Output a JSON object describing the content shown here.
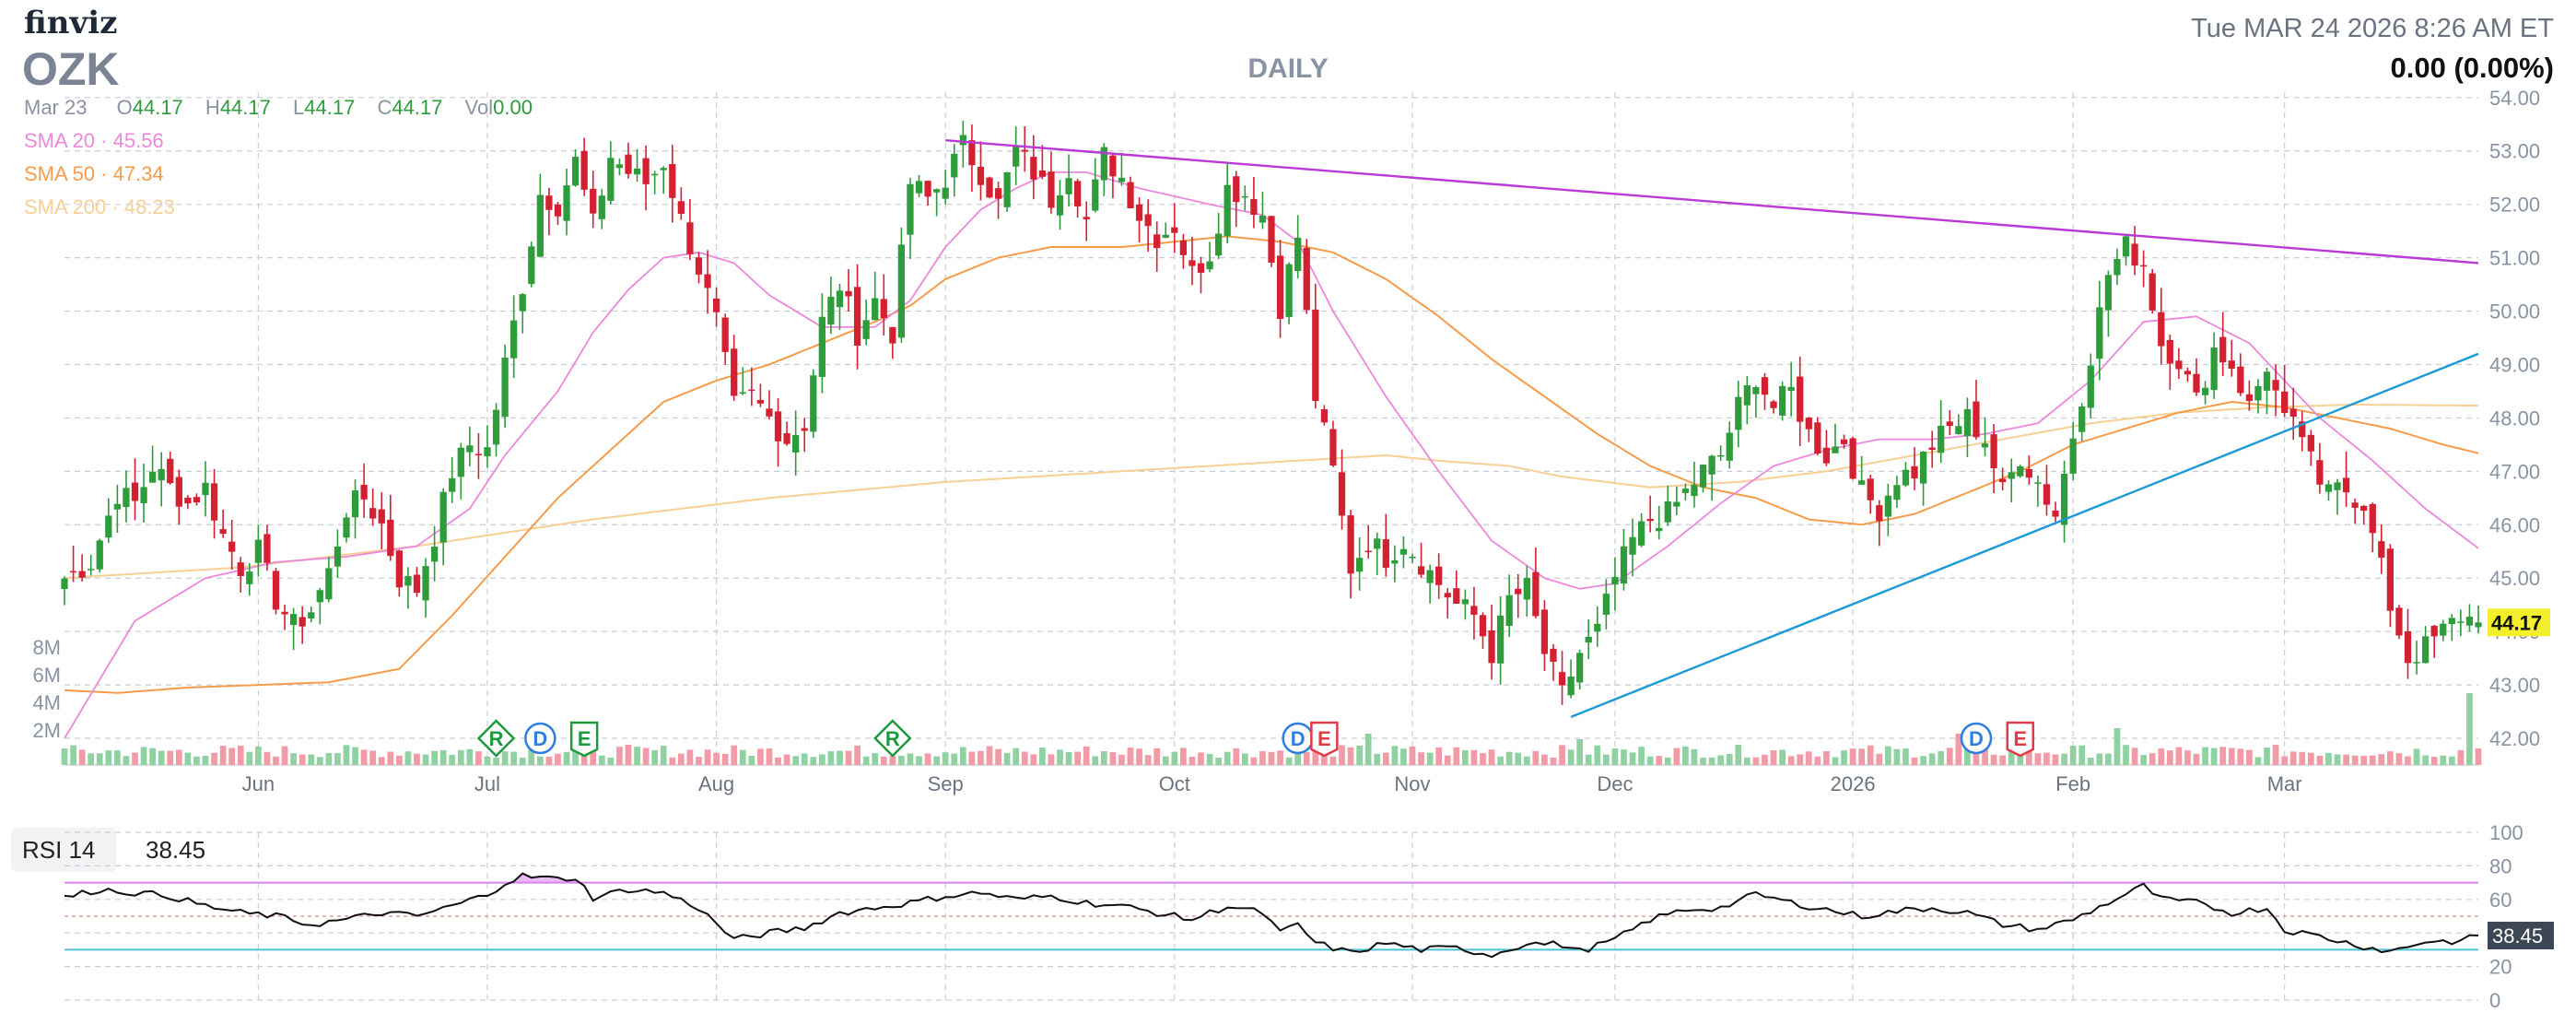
{
  "header": {
    "logo": "finviz",
    "ticker": "OZK",
    "timeframe": "DAILY",
    "datetime": "Tue MAR 24 2026 8:26 AM ET",
    "change": "0.00 (0.00%)",
    "ohlc_date": "Mar 23",
    "ohlc": [
      {
        "k": "O",
        "v": "44.17"
      },
      {
        "k": "H",
        "v": "44.17"
      },
      {
        "k": "L",
        "v": "44.17"
      },
      {
        "k": "C",
        "v": "44.17"
      },
      {
        "k": "Vol",
        "v": "0.00"
      }
    ],
    "sma": [
      {
        "label": "SMA 20",
        "value": "45.56",
        "color": "#ec88dc"
      },
      {
        "label": "SMA 50",
        "value": "47.34",
        "color": "#f59c4b"
      },
      {
        "label": "SMA 200",
        "value": "48.23",
        "color": "#f8cf94"
      }
    ]
  },
  "rsi_panel": {
    "label": "RSI 14",
    "value": "38.45"
  },
  "colors": {
    "up": "#2e9c3b",
    "down": "#d42132",
    "vol_up": "#8fd1a0",
    "vol_down": "#f29aa5",
    "trend_magenta": "#b93ad4",
    "trend_blue": "#1a9bd7",
    "rsi_line": "#111111",
    "rsi_upper": "#d982f0",
    "rsi_lower": "#50c2d6"
  },
  "chart_data": {
    "type": "candlestick",
    "title": "OZK DAILY",
    "y_range": [
      41.5,
      54.1
    ],
    "y_ticks": [
      "54.00",
      "53.00",
      "52.00",
      "51.00",
      "50.00",
      "49.00",
      "48.00",
      "47.00",
      "46.00",
      "45.00",
      "44.00",
      "43.00",
      "42.00"
    ],
    "last_price_label": "44.17",
    "volume_ticks": [
      "8M",
      "6M",
      "4M",
      "2M"
    ],
    "x_ticks": [
      {
        "i": 22,
        "label": "Jun"
      },
      {
        "i": 48,
        "label": "Jul"
      },
      {
        "i": 74,
        "label": "Aug"
      },
      {
        "i": 100,
        "label": "Sep"
      },
      {
        "i": 126,
        "label": "Oct"
      },
      {
        "i": 153,
        "label": "Nov"
      },
      {
        "i": 176,
        "label": "Dec"
      },
      {
        "i": 203,
        "label": "2026"
      },
      {
        "i": 228,
        "label": "Feb"
      },
      {
        "i": 252,
        "label": "Mar"
      }
    ],
    "bars_count": 275,
    "anchors": [
      [
        0,
        45.0
      ],
      [
        3,
        45.3
      ],
      [
        6,
        46.6
      ],
      [
        8,
        46.4
      ],
      [
        10,
        47.1
      ],
      [
        12,
        46.7
      ],
      [
        14,
        46.4
      ],
      [
        16,
        46.7
      ],
      [
        18,
        45.8
      ],
      [
        20,
        45.2
      ],
      [
        22,
        45.5
      ],
      [
        24,
        44.6
      ],
      [
        26,
        44.1
      ],
      [
        28,
        44.4
      ],
      [
        30,
        45.1
      ],
      [
        32,
        46.3
      ],
      [
        34,
        46.5
      ],
      [
        36,
        46.0
      ],
      [
        38,
        45.0
      ],
      [
        40,
        44.8
      ],
      [
        42,
        45.8
      ],
      [
        44,
        47.0
      ],
      [
        46,
        47.5
      ],
      [
        48,
        47.4
      ],
      [
        50,
        49.0
      ],
      [
        52,
        50.5
      ],
      [
        54,
        52.2
      ],
      [
        56,
        52.0
      ],
      [
        58,
        52.8
      ],
      [
        60,
        51.6
      ],
      [
        62,
        52.9
      ],
      [
        64,
        52.6
      ],
      [
        66,
        52.4
      ],
      [
        68,
        52.8
      ],
      [
        70,
        51.7
      ],
      [
        72,
        50.8
      ],
      [
        74,
        49.8
      ],
      [
        76,
        48.2
      ],
      [
        78,
        48.4
      ],
      [
        80,
        48.0
      ],
      [
        82,
        47.6
      ],
      [
        84,
        47.9
      ],
      [
        86,
        49.8
      ],
      [
        88,
        50.5
      ],
      [
        90,
        49.6
      ],
      [
        92,
        50.2
      ],
      [
        94,
        49.6
      ],
      [
        96,
        52.4
      ],
      [
        98,
        52.1
      ],
      [
        100,
        52.5
      ],
      [
        102,
        53.1
      ],
      [
        104,
        52.6
      ],
      [
        106,
        52.0
      ],
      [
        108,
        53.0
      ],
      [
        110,
        52.6
      ],
      [
        112,
        52.1
      ],
      [
        114,
        52.7
      ],
      [
        116,
        51.7
      ],
      [
        118,
        52.9
      ],
      [
        120,
        52.5
      ],
      [
        122,
        51.8
      ],
      [
        124,
        51.4
      ],
      [
        126,
        51.6
      ],
      [
        128,
        50.7
      ],
      [
        130,
        51.1
      ],
      [
        132,
        52.3
      ],
      [
        134,
        52.2
      ],
      [
        136,
        51.8
      ],
      [
        138,
        50.1
      ],
      [
        140,
        51.4
      ],
      [
        142,
        48.4
      ],
      [
        144,
        47.0
      ],
      [
        146,
        45.2
      ],
      [
        148,
        45.7
      ],
      [
        150,
        45.4
      ],
      [
        152,
        45.7
      ],
      [
        154,
        45.3
      ],
      [
        156,
        44.9
      ],
      [
        158,
        44.5
      ],
      [
        160,
        44.3
      ],
      [
        162,
        43.6
      ],
      [
        164,
        44.6
      ],
      [
        166,
        44.8
      ],
      [
        168,
        43.6
      ],
      [
        170,
        42.8
      ],
      [
        172,
        43.6
      ],
      [
        174,
        44.0
      ],
      [
        176,
        45.0
      ],
      [
        178,
        45.7
      ],
      [
        180,
        46.1
      ],
      [
        182,
        46.2
      ],
      [
        184,
        46.6
      ],
      [
        186,
        47.0
      ],
      [
        188,
        47.3
      ],
      [
        190,
        48.2
      ],
      [
        192,
        48.8
      ],
      [
        194,
        48.2
      ],
      [
        196,
        48.5
      ],
      [
        198,
        47.7
      ],
      [
        200,
        47.3
      ],
      [
        202,
        47.6
      ],
      [
        204,
        46.6
      ],
      [
        206,
        46.3
      ],
      [
        208,
        46.9
      ],
      [
        210,
        47.0
      ],
      [
        212,
        47.5
      ],
      [
        214,
        47.8
      ],
      [
        216,
        48.0
      ],
      [
        218,
        47.6
      ],
      [
        220,
        46.6
      ],
      [
        222,
        47.3
      ],
      [
        224,
        46.8
      ],
      [
        226,
        46.2
      ],
      [
        228,
        47.7
      ],
      [
        230,
        49.2
      ],
      [
        232,
        50.7
      ],
      [
        234,
        51.2
      ],
      [
        236,
        50.9
      ],
      [
        238,
        49.4
      ],
      [
        240,
        49.1
      ],
      [
        242,
        48.3
      ],
      [
        244,
        49.3
      ],
      [
        246,
        49.0
      ],
      [
        248,
        48.2
      ],
      [
        250,
        49.0
      ],
      [
        252,
        47.9
      ],
      [
        254,
        47.7
      ],
      [
        256,
        46.6
      ],
      [
        258,
        47.0
      ],
      [
        260,
        46.5
      ],
      [
        262,
        45.8
      ],
      [
        264,
        44.5
      ],
      [
        266,
        43.5
      ],
      [
        268,
        43.7
      ],
      [
        270,
        44.0
      ],
      [
        272,
        44.3
      ],
      [
        274,
        44.17
      ]
    ],
    "sma20_anchors": [
      [
        0,
        42.0
      ],
      [
        8,
        44.2
      ],
      [
        16,
        45.0
      ],
      [
        24,
        45.3
      ],
      [
        32,
        45.4
      ],
      [
        40,
        45.6
      ],
      [
        46,
        46.3
      ],
      [
        50,
        47.3
      ],
      [
        56,
        48.5
      ],
      [
        60,
        49.6
      ],
      [
        64,
        50.4
      ],
      [
        68,
        51.0
      ],
      [
        72,
        51.1
      ],
      [
        76,
        50.9
      ],
      [
        80,
        50.3
      ],
      [
        86,
        49.7
      ],
      [
        92,
        49.7
      ],
      [
        96,
        50.2
      ],
      [
        100,
        51.2
      ],
      [
        104,
        51.9
      ],
      [
        108,
        52.3
      ],
      [
        112,
        52.6
      ],
      [
        116,
        52.6
      ],
      [
        122,
        52.3
      ],
      [
        130,
        52.0
      ],
      [
        136,
        51.8
      ],
      [
        140,
        51.3
      ],
      [
        144,
        50.0
      ],
      [
        150,
        48.4
      ],
      [
        156,
        47.0
      ],
      [
        162,
        45.7
      ],
      [
        168,
        45.0
      ],
      [
        172,
        44.8
      ],
      [
        176,
        44.9
      ],
      [
        182,
        45.6
      ],
      [
        188,
        46.4
      ],
      [
        194,
        47.1
      ],
      [
        200,
        47.4
      ],
      [
        206,
        47.6
      ],
      [
        212,
        47.6
      ],
      [
        218,
        47.7
      ],
      [
        224,
        47.9
      ],
      [
        230,
        48.7
      ],
      [
        236,
        49.8
      ],
      [
        242,
        49.9
      ],
      [
        248,
        49.4
      ],
      [
        252,
        48.7
      ],
      [
        256,
        48.0
      ],
      [
        262,
        47.2
      ],
      [
        268,
        46.3
      ],
      [
        274,
        45.56
      ]
    ],
    "sma50_anchors": [
      [
        0,
        42.9
      ],
      [
        6,
        42.85
      ],
      [
        14,
        42.95
      ],
      [
        22,
        43.0
      ],
      [
        30,
        43.05
      ],
      [
        38,
        43.3
      ],
      [
        44,
        44.3
      ],
      [
        50,
        45.4
      ],
      [
        56,
        46.5
      ],
      [
        62,
        47.4
      ],
      [
        68,
        48.3
      ],
      [
        74,
        48.7
      ],
      [
        80,
        49.0
      ],
      [
        86,
        49.4
      ],
      [
        92,
        49.8
      ],
      [
        96,
        50.1
      ],
      [
        100,
        50.6
      ],
      [
        106,
        51.0
      ],
      [
        112,
        51.2
      ],
      [
        120,
        51.2
      ],
      [
        126,
        51.3
      ],
      [
        132,
        51.4
      ],
      [
        138,
        51.3
      ],
      [
        144,
        51.1
      ],
      [
        150,
        50.6
      ],
      [
        156,
        49.9
      ],
      [
        162,
        49.1
      ],
      [
        168,
        48.4
      ],
      [
        174,
        47.7
      ],
      [
        180,
        47.1
      ],
      [
        186,
        46.7
      ],
      [
        192,
        46.5
      ],
      [
        198,
        46.1
      ],
      [
        204,
        46.0
      ],
      [
        210,
        46.2
      ],
      [
        216,
        46.6
      ],
      [
        222,
        47.0
      ],
      [
        228,
        47.5
      ],
      [
        234,
        47.8
      ],
      [
        240,
        48.1
      ],
      [
        246,
        48.3
      ],
      [
        252,
        48.2
      ],
      [
        258,
        48.0
      ],
      [
        264,
        47.8
      ],
      [
        270,
        47.5
      ],
      [
        274,
        47.34
      ]
    ],
    "sma200_anchors": [
      [
        0,
        45.0
      ],
      [
        20,
        45.2
      ],
      [
        40,
        45.6
      ],
      [
        60,
        46.1
      ],
      [
        80,
        46.5
      ],
      [
        100,
        46.8
      ],
      [
        120,
        47.0
      ],
      [
        140,
        47.2
      ],
      [
        150,
        47.3
      ],
      [
        156,
        47.2
      ],
      [
        164,
        47.1
      ],
      [
        170,
        46.9
      ],
      [
        180,
        46.7
      ],
      [
        190,
        46.8
      ],
      [
        200,
        47.0
      ],
      [
        210,
        47.3
      ],
      [
        220,
        47.6
      ],
      [
        230,
        47.9
      ],
      [
        240,
        48.1
      ],
      [
        250,
        48.2
      ],
      [
        260,
        48.25
      ],
      [
        274,
        48.23
      ]
    ],
    "trendlines": [
      {
        "name": "resistance",
        "from": [
          100,
          53.2
        ],
        "to": [
          274,
          50.9
        ]
      },
      {
        "name": "support",
        "from": [
          171,
          42.4
        ],
        "to": [
          274,
          49.2
        ]
      }
    ],
    "events": [
      {
        "i": 49,
        "type": "R"
      },
      {
        "i": 54,
        "type": "D"
      },
      {
        "i": 59,
        "type": "E"
      },
      {
        "i": 94,
        "type": "R"
      },
      {
        "i": 140,
        "type": "D"
      },
      {
        "i": 143,
        "type": "E"
      },
      {
        "i": 217,
        "type": "D"
      },
      {
        "i": 222,
        "type": "E"
      }
    ],
    "rsi": {
      "y_range": [
        0,
        100
      ],
      "y_ticks": [
        "100",
        "80",
        "60",
        "40",
        "20",
        "0"
      ],
      "upper": 70,
      "lower": 30,
      "anchors": [
        [
          0,
          61
        ],
        [
          4,
          66
        ],
        [
          8,
          64
        ],
        [
          12,
          62
        ],
        [
          16,
          56
        ],
        [
          20,
          52
        ],
        [
          24,
          50
        ],
        [
          28,
          45
        ],
        [
          32,
          48
        ],
        [
          36,
          52
        ],
        [
          40,
          50
        ],
        [
          44,
          56
        ],
        [
          48,
          63
        ],
        [
          50,
          70
        ],
        [
          52,
          74
        ],
        [
          56,
          72
        ],
        [
          58,
          73
        ],
        [
          60,
          61
        ],
        [
          64,
          66
        ],
        [
          68,
          64
        ],
        [
          72,
          55
        ],
        [
          76,
          36
        ],
        [
          80,
          40
        ],
        [
          84,
          43
        ],
        [
          88,
          52
        ],
        [
          92,
          55
        ],
        [
          96,
          58
        ],
        [
          100,
          62
        ],
        [
          104,
          64
        ],
        [
          108,
          60
        ],
        [
          112,
          62
        ],
        [
          116,
          58
        ],
        [
          120,
          56
        ],
        [
          124,
          52
        ],
        [
          128,
          48
        ],
        [
          132,
          56
        ],
        [
          136,
          52
        ],
        [
          138,
          40
        ],
        [
          140,
          45
        ],
        [
          142,
          34
        ],
        [
          146,
          28
        ],
        [
          150,
          34
        ],
        [
          154,
          30
        ],
        [
          158,
          31
        ],
        [
          162,
          27
        ],
        [
          166,
          34
        ],
        [
          170,
          33
        ],
        [
          172,
          29
        ],
        [
          176,
          36
        ],
        [
          180,
          48
        ],
        [
          184,
          54
        ],
        [
          188,
          55
        ],
        [
          192,
          63
        ],
        [
          196,
          58
        ],
        [
          200,
          54
        ],
        [
          204,
          50
        ],
        [
          208,
          53
        ],
        [
          212,
          55
        ],
        [
          216,
          52
        ],
        [
          220,
          45
        ],
        [
          224,
          42
        ],
        [
          228,
          48
        ],
        [
          232,
          58
        ],
        [
          236,
          68
        ],
        [
          238,
          60
        ],
        [
          242,
          58
        ],
        [
          246,
          52
        ],
        [
          250,
          55
        ],
        [
          252,
          42
        ],
        [
          256,
          38
        ],
        [
          260,
          33
        ],
        [
          264,
          29
        ],
        [
          268,
          35
        ],
        [
          272,
          35
        ],
        [
          274,
          38.45
        ]
      ]
    }
  }
}
